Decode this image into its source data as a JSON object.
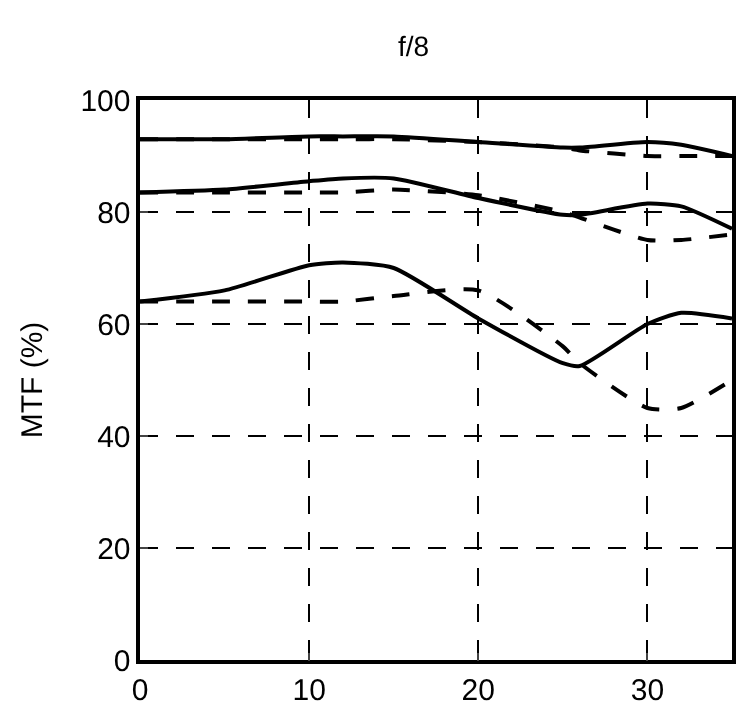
{
  "chart_data": {
    "type": "line",
    "title": "f/8",
    "ylabel": "MTF (%)",
    "x": [
      0,
      5,
      10,
      12,
      15,
      20,
      25,
      26,
      30,
      32,
      35
    ],
    "xlim": [
      0,
      35
    ],
    "xticks": [
      0,
      10,
      20,
      30
    ],
    "ylim": [
      0,
      100
    ],
    "yticks": [
      0,
      20,
      40,
      60,
      80,
      100
    ],
    "grid": true,
    "marker": "none",
    "series": [
      {
        "color": "#000000",
        "line_style": "solid",
        "values": [
          93,
          93,
          93.5,
          93.5,
          93.5,
          92.5,
          91.5,
          91.5,
          92.5,
          92,
          90
        ]
      },
      {
        "color": "#000000",
        "line_style": "dashed",
        "values": [
          93,
          93,
          93,
          93,
          93,
          92.5,
          91.5,
          91,
          90,
          90,
          90
        ]
      },
      {
        "color": "#000000",
        "line_style": "solid",
        "values": [
          83.5,
          84,
          85.5,
          86,
          86,
          82.5,
          79.5,
          79.5,
          81.5,
          81,
          77
        ]
      },
      {
        "color": "#000000",
        "line_style": "dashed",
        "values": [
          83.5,
          83.5,
          83.5,
          83.5,
          84,
          83,
          80,
          79,
          75,
          75,
          76
        ]
      },
      {
        "color": "#000000",
        "line_style": "solid",
        "values": [
          64,
          66,
          70.5,
          71,
          70,
          61,
          53,
          52.5,
          60,
          62,
          61
        ]
      },
      {
        "color": "#000000",
        "line_style": "dashed",
        "values": [
          64,
          64,
          64,
          64,
          65,
          66,
          56,
          53,
          45,
          45,
          50
        ]
      }
    ]
  }
}
